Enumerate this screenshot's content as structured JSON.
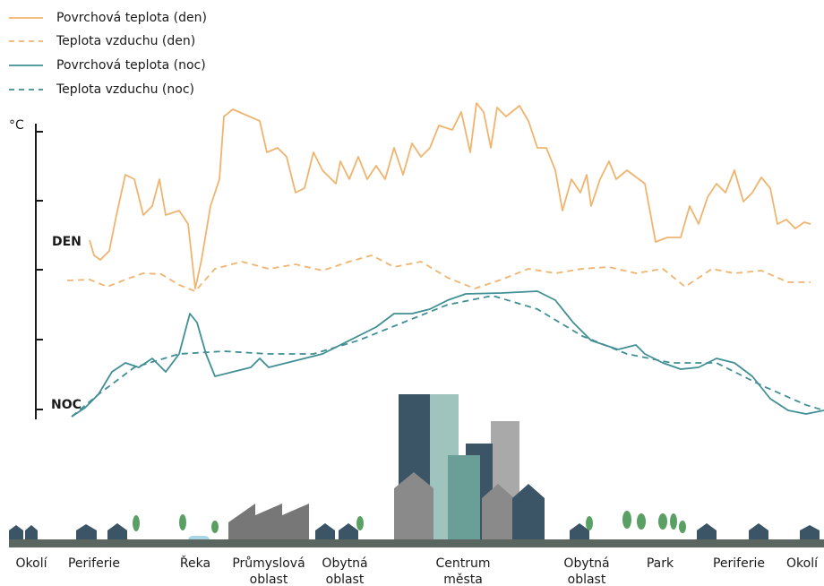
{
  "legend": [
    "Povrchová teplota (den)",
    "Teplota vzduchu (den)",
    "Povrchová teplota (noc)",
    "Teplota vzduchu (noc)"
  ],
  "axis": {
    "unit": "°C",
    "day_label": "DEN",
    "night_label": "NOC"
  },
  "zones": [
    {
      "lines": [
        "Okolí"
      ]
    },
    {
      "lines": [
        "Periferie"
      ]
    },
    {
      "lines": [
        "Řeka"
      ]
    },
    {
      "lines": [
        "Průmyslová",
        "oblast"
      ]
    },
    {
      "lines": [
        "Obytná",
        "oblast"
      ]
    },
    {
      "lines": [
        "Centrum",
        "města"
      ]
    },
    {
      "lines": [
        "Obytná",
        "oblast"
      ]
    },
    {
      "lines": [
        "Park"
      ]
    },
    {
      "lines": [
        "Periferie"
      ]
    },
    {
      "lines": [
        "Okolí"
      ]
    }
  ]
}
